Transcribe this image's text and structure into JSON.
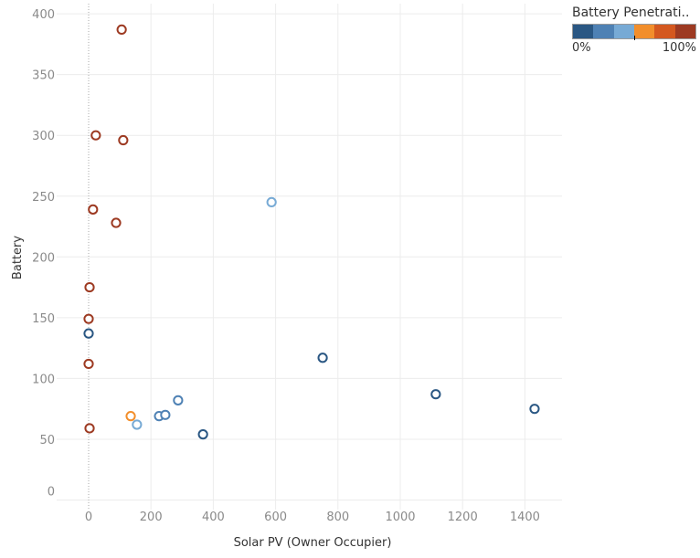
{
  "chart_data": {
    "type": "scatter",
    "title": "",
    "xlabel": "Solar PV (Owner Occupier)",
    "ylabel": "Battery",
    "xlim": [
      -60,
      1500
    ],
    "ylim": [
      -8,
      410
    ],
    "xticks": [
      0,
      200,
      400,
      600,
      800,
      1000,
      1200,
      1400
    ],
    "yticks": [
      0,
      50,
      100,
      150,
      200,
      250,
      300,
      350,
      400
    ],
    "grid": true,
    "legend": {
      "title": "Battery Penetrati..",
      "min_label": "0%",
      "max_label": "100%",
      "placement": "top-right",
      "colors": [
        "#2a5783",
        "#4e81b4",
        "#77aad5",
        "#f28e2b",
        "#d4581f",
        "#9d3a22"
      ]
    },
    "points": [
      {
        "x": 106,
        "y": 387,
        "penetration": 0.95
      },
      {
        "x": 23,
        "y": 300,
        "penetration": 0.95
      },
      {
        "x": 111,
        "y": 296,
        "penetration": 0.95
      },
      {
        "x": 14,
        "y": 239,
        "penetration": 0.95
      },
      {
        "x": 88,
        "y": 228,
        "penetration": 0.95
      },
      {
        "x": 3,
        "y": 175,
        "penetration": 0.95
      },
      {
        "x": 0,
        "y": 149,
        "penetration": 0.95
      },
      {
        "x": 0,
        "y": 137,
        "penetration": 0.05
      },
      {
        "x": 0,
        "y": 112,
        "penetration": 0.95
      },
      {
        "x": 3,
        "y": 59,
        "penetration": 0.95
      },
      {
        "x": 587,
        "y": 245,
        "penetration": 0.42
      },
      {
        "x": 751,
        "y": 117,
        "penetration": 0.05
      },
      {
        "x": 1114,
        "y": 87,
        "penetration": 0.05
      },
      {
        "x": 1431,
        "y": 75,
        "penetration": 0.05
      },
      {
        "x": 135,
        "y": 69,
        "penetration": 0.55
      },
      {
        "x": 155,
        "y": 62,
        "penetration": 0.42
      },
      {
        "x": 226,
        "y": 69,
        "penetration": 0.25
      },
      {
        "x": 246,
        "y": 70,
        "penetration": 0.25
      },
      {
        "x": 287,
        "y": 82,
        "penetration": 0.25
      },
      {
        "x": 367,
        "y": 54,
        "penetration": 0.05
      }
    ]
  }
}
